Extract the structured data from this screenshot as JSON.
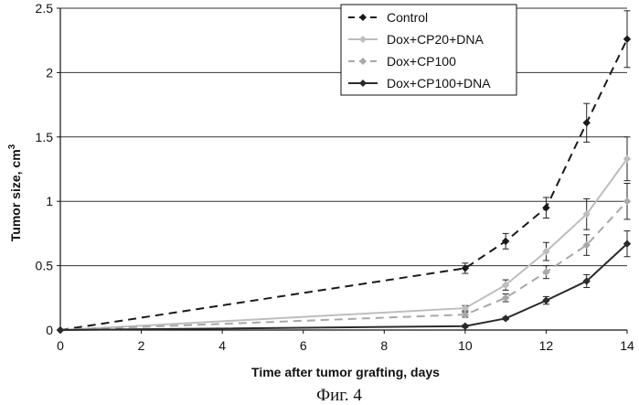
{
  "caption": "Фиг. 4",
  "colors": {
    "control": "#1a1a1a",
    "dox_cp20_dna": "#bdbdbd",
    "dox_cp100": "#a8a8a8",
    "dox_cp100_dna": "#2a2a2a"
  },
  "chart_data": {
    "type": "line",
    "xlabel": "Time after tumor grafting, days",
    "ylabel": "Tumor size, cm",
    "ylabel_superscript": "3",
    "xlim": [
      0,
      14
    ],
    "ylim": [
      0,
      2.5
    ],
    "x_ticks": [
      "0",
      "2",
      "4",
      "6",
      "8",
      "10",
      "12",
      "14"
    ],
    "y_ticks": [
      "0",
      "0.5",
      "1",
      "1.5",
      "2",
      "2.5"
    ],
    "grid": "horizontal",
    "legend_position": "top-right",
    "x": [
      0,
      10,
      11,
      12,
      13,
      14
    ],
    "series": [
      {
        "name": "Control",
        "style": "dashed",
        "color_key": "control",
        "values": [
          0,
          0.48,
          0.69,
          0.95,
          1.61,
          2.26
        ],
        "errors": [
          0,
          0.04,
          0.06,
          0.08,
          0.15,
          0.22
        ]
      },
      {
        "name": "Dox+CP20+DNA",
        "style": "solid",
        "color_key": "dox_cp20_dna",
        "values": [
          0,
          0.17,
          0.35,
          0.61,
          0.9,
          1.33
        ],
        "errors": [
          0,
          0.02,
          0.04,
          0.07,
          0.12,
          0.17
        ]
      },
      {
        "name": "Dox+CP100",
        "style": "dashed",
        "color_key": "dox_cp100",
        "values": [
          0,
          0.12,
          0.25,
          0.45,
          0.66,
          1.0
        ],
        "errors": [
          0,
          0.02,
          0.03,
          0.05,
          0.08,
          0.14
        ]
      },
      {
        "name": "Dox+CP100+DNA",
        "style": "solid",
        "color_key": "dox_cp100_dna",
        "values": [
          0,
          0.03,
          0.09,
          0.23,
          0.38,
          0.67
        ],
        "errors": [
          0,
          0.01,
          0.01,
          0.03,
          0.05,
          0.1
        ]
      }
    ]
  }
}
